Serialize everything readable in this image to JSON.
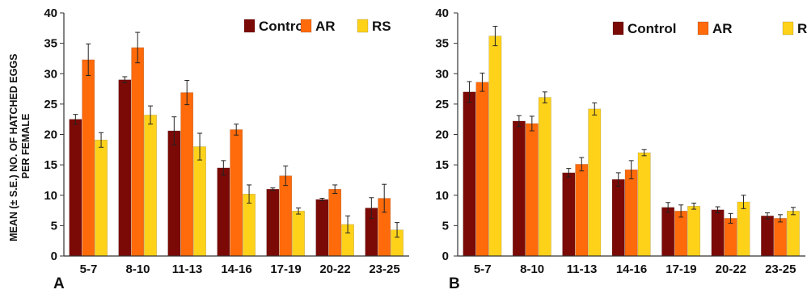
{
  "ylabel_lines": [
    "MEAN (± S.E.) NO. OF HATCHED EGGS",
    "PER FEMALE"
  ],
  "colors": {
    "Control": "#7b0a06",
    "AR": "#ff6a0a",
    "RS": "#ffd21a"
  },
  "chart_data": [
    {
      "type": "bar",
      "panel_label": "A",
      "categories": [
        "5-7",
        "8-10",
        "11-13",
        "14-16",
        "17-19",
        "20-22",
        "23-25"
      ],
      "ylim": [
        0,
        40
      ],
      "yticks": [
        0,
        5,
        10,
        15,
        20,
        25,
        30,
        35,
        40
      ],
      "legend_position": "top-right",
      "series": [
        {
          "name": "Control",
          "values": [
            22.5,
            29.0,
            20.6,
            14.5,
            11.0,
            9.3,
            7.9
          ],
          "errors": [
            0.8,
            0.5,
            2.3,
            1.2,
            0.2,
            0.2,
            1.7
          ]
        },
        {
          "name": "AR",
          "values": [
            32.3,
            34.3,
            26.9,
            20.8,
            13.2,
            11.0,
            9.5
          ],
          "errors": [
            2.6,
            2.5,
            2.0,
            0.9,
            1.6,
            0.7,
            2.3
          ]
        },
        {
          "name": "RS",
          "values": [
            19.1,
            23.2,
            18.0,
            10.2,
            7.4,
            5.2,
            4.3
          ],
          "errors": [
            1.2,
            1.5,
            2.2,
            1.5,
            0.5,
            1.4,
            1.2
          ]
        }
      ]
    },
    {
      "type": "bar",
      "panel_label": "B",
      "categories": [
        "5-7",
        "8-10",
        "11-13",
        "14-16",
        "17-19",
        "20-22",
        "23-25"
      ],
      "ylim": [
        0,
        40
      ],
      "yticks": [
        0,
        5,
        10,
        15,
        20,
        25,
        30,
        35,
        40
      ],
      "legend_position": "top-right",
      "series": [
        {
          "name": "Control",
          "values": [
            27.0,
            22.2,
            13.7,
            12.6,
            8.0,
            7.6,
            6.6
          ],
          "errors": [
            1.7,
            0.9,
            0.7,
            1.1,
            0.8,
            0.5,
            0.5
          ]
        },
        {
          "name": "AR",
          "values": [
            28.6,
            21.8,
            15.1,
            14.2,
            7.4,
            6.2,
            6.2
          ],
          "errors": [
            1.5,
            1.2,
            1.1,
            1.5,
            1.0,
            0.8,
            0.6
          ]
        },
        {
          "name": "RS",
          "values": [
            36.2,
            26.1,
            24.2,
            17.0,
            8.2,
            8.9,
            7.4
          ],
          "errors": [
            1.6,
            0.9,
            1.0,
            0.5,
            0.5,
            1.1,
            0.6
          ]
        }
      ]
    }
  ]
}
